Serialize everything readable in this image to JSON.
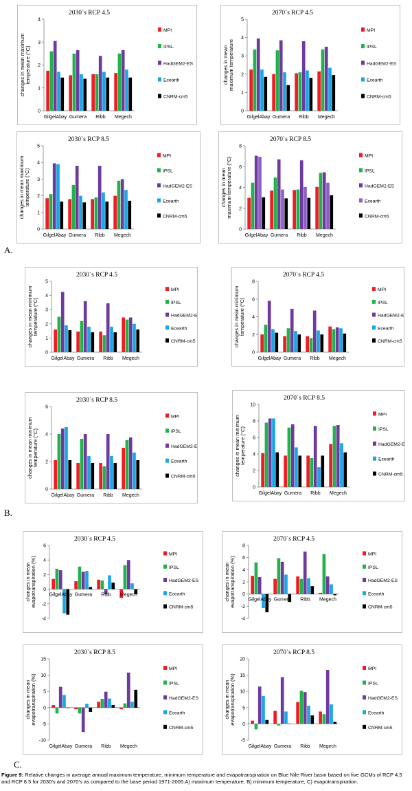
{
  "colors": {
    "MPI": "#ee1c25",
    "IPSL": "#22b24c",
    "HadGEM2-ES": "#6e3a9e",
    "Ecearth": "#1aa7e6",
    "CNRM-cm5": "#000000",
    "Ecearth_alt": "#8f5fc4"
  },
  "sections": [
    {
      "label": "A."
    },
    {
      "label": "B."
    },
    {
      "label": "C."
    }
  ],
  "caption": {
    "prefix": "Figure 9:",
    "text": " Relative changes in average annual maximum temperature, minimum temperature and evapotranspiration on Blue Nile River basin based on five GCMs of RCP 4.5 and RCP 8.5 for 2030’s and 2070’s as compared to the base period 1971-2005.A) maximum temperature, B) minimum temperature,  C) evapotranspiration."
  },
  "chart_data": [
    {
      "id": "a1",
      "type": "bar",
      "title": "2030`s RCP 4.5",
      "ylabel": [
        "changes in mean maximum",
        "temperature (°C)"
      ],
      "ylim": [
        0,
        4
      ],
      "yticks": [
        0,
        1,
        2,
        3,
        4
      ],
      "categories": [
        "GilgelAbay",
        "Gumera",
        "Ribb",
        "Megech"
      ],
      "series": [
        {
          "name": "MPI",
          "values": [
            1.75,
            1.55,
            1.6,
            1.65
          ]
        },
        {
          "name": "IPSL",
          "values": [
            2.6,
            2.5,
            1.6,
            2.5
          ]
        },
        {
          "name": "HadGEM2-ES",
          "values": [
            3.05,
            2.65,
            2.4,
            2.65
          ]
        },
        {
          "name": "Ecearth",
          "values": [
            1.7,
            1.6,
            1.7,
            1.8
          ]
        },
        {
          "name": "CNRM-cm5",
          "values": [
            1.45,
            1.4,
            1.45,
            1.45
          ]
        }
      ]
    },
    {
      "id": "a2",
      "type": "bar",
      "title": "2070`s RCP 4.5",
      "ylabel": [
        "changes in mean",
        "maximum temperature"
      ],
      "ylim": [
        0,
        5
      ],
      "yticks": [
        0,
        1,
        2,
        3,
        4,
        5
      ],
      "categories": [
        "GilgelAbay",
        "Gumera",
        "Ribb",
        "Megech"
      ],
      "series": [
        {
          "name": "MPI",
          "values": [
            2.25,
            2.0,
            2.05,
            2.15
          ]
        },
        {
          "name": "IPSL",
          "values": [
            3.35,
            3.3,
            2.1,
            3.35
          ]
        },
        {
          "name": "HadGEM2-ES",
          "values": [
            3.95,
            3.85,
            3.8,
            3.5
          ]
        },
        {
          "name": "Ecearth",
          "values": [
            2.25,
            2.1,
            2.2,
            2.35
          ]
        },
        {
          "name": "CNRM-cm5",
          "values": [
            1.85,
            1.4,
            1.8,
            1.95
          ]
        }
      ]
    },
    {
      "id": "a3",
      "type": "bar",
      "title": "2030`s RCP 8.5",
      "ylabel": [
        "changes in mean maximum",
        "temperature (°C)"
      ],
      "ylim": [
        0,
        5
      ],
      "yticks": [
        0,
        1,
        2,
        3,
        4,
        5
      ],
      "categories": [
        "GilgelAbay",
        "Gumera",
        "Ribb",
        "Megech"
      ],
      "series": [
        {
          "name": "MPI",
          "values": [
            1.85,
            1.8,
            1.8,
            2.0
          ]
        },
        {
          "name": "IPSL",
          "values": [
            2.1,
            2.65,
            1.9,
            2.9
          ]
        },
        {
          "name": "HadGEM2-ES",
          "values": [
            3.95,
            3.8,
            3.8,
            3.0
          ]
        },
        {
          "name": "Ecearth",
          "values": [
            3.9,
            2.0,
            2.2,
            2.35
          ]
        },
        {
          "name": "CNRM-cm5",
          "values": [
            1.65,
            1.6,
            1.65,
            1.7
          ]
        }
      ]
    },
    {
      "id": "a4",
      "type": "bar",
      "title": "2070`s RCP 8.5",
      "ylabel": [
        "changes in mean",
        "maximum temperature (°C)"
      ],
      "ylim": [
        0,
        8
      ],
      "yticks": [
        0,
        2,
        4,
        6,
        8
      ],
      "categories": [
        "GilgelAbay",
        "Gumera",
        "Ribb",
        "Megech"
      ],
      "series": [
        {
          "name": "MPI",
          "values": [
            3.0,
            3.7,
            3.75,
            4.05
          ]
        },
        {
          "name": "IPSL",
          "values": [
            4.45,
            4.95,
            3.8,
            5.4
          ]
        },
        {
          "name": "HadGEM2-ES",
          "values": [
            7.05,
            6.7,
            6.6,
            5.45
          ]
        },
        {
          "name": "Ecearth",
          "values": [
            6.95,
            3.8,
            4.05,
            4.45
          ],
          "color": "#8f5fc4"
        },
        {
          "name": "CNRM-cm5",
          "values": [
            3.05,
            2.95,
            3.0,
            3.25
          ]
        }
      ]
    },
    {
      "id": "b1",
      "type": "bar",
      "title": "2030`s RCP 4.5",
      "ylabel": [
        "changes in mean minimum",
        "temperature (°C)"
      ],
      "ylim": [
        0,
        5
      ],
      "yticks": [
        0,
        1,
        2,
        3,
        4,
        5
      ],
      "categories": [
        "GilgelAbay",
        "Gumera",
        "Ribb",
        "Megech"
      ],
      "series": [
        {
          "name": "MPI",
          "values": [
            1.6,
            1.45,
            1.45,
            2.45
          ]
        },
        {
          "name": "IPSL",
          "values": [
            2.5,
            2.2,
            1.2,
            2.3
          ]
        },
        {
          "name": "HadGEM2-ES",
          "values": [
            4.25,
            3.6,
            3.45,
            2.45
          ]
        },
        {
          "name": "Ecearth",
          "values": [
            1.9,
            1.8,
            1.8,
            2.0
          ]
        },
        {
          "name": "CNRM-cm5",
          "values": [
            1.55,
            1.4,
            1.4,
            1.6
          ]
        }
      ]
    },
    {
      "id": "b2",
      "type": "bar",
      "title": "2070`s RCP 4.5",
      "ylabel": [
        "changes in mean minimum",
        "temperature (°C)"
      ],
      "ylim": [
        0,
        8
      ],
      "yticks": [
        0,
        2,
        4,
        6,
        8
      ],
      "categories": [
        "GilgelAbay",
        "Gumera",
        "Ribb",
        "Megech"
      ],
      "series": [
        {
          "name": "MPI",
          "values": [
            2.0,
            1.8,
            1.8,
            2.9
          ]
        },
        {
          "name": "IPSL",
          "values": [
            3.1,
            2.7,
            1.6,
            2.6
          ]
        },
        {
          "name": "HadGEM2-ES",
          "values": [
            5.8,
            4.9,
            4.7,
            2.8
          ]
        },
        {
          "name": "Ecearth",
          "values": [
            2.6,
            2.4,
            2.45,
            2.7
          ]
        },
        {
          "name": "CNRM-cm5",
          "values": [
            2.2,
            2.0,
            2.0,
            2.1
          ]
        }
      ]
    },
    {
      "id": "b3",
      "type": "bar",
      "title": "2030`s RCP 8.5",
      "ylabel": [
        "changes in mean minimum",
        "temperature (°C)"
      ],
      "ylim": [
        0,
        6
      ],
      "yticks": [
        0,
        2,
        4,
        6
      ],
      "categories": [
        "GilgelAbay",
        "Gumera",
        "Ribb",
        "Megech"
      ],
      "series": [
        {
          "name": "MPI",
          "values": [
            2.1,
            1.9,
            1.9,
            3.0
          ]
        },
        {
          "name": "IPSL",
          "values": [
            4.0,
            3.65,
            1.65,
            3.55
          ]
        },
        {
          "name": "HadGEM2-ES",
          "values": [
            4.4,
            4.0,
            4.0,
            3.75
          ]
        },
        {
          "name": "Ecearth",
          "values": [
            4.5,
            2.4,
            2.4,
            2.65
          ]
        },
        {
          "name": "CNRM-cm5",
          "values": [
            2.1,
            1.9,
            1.9,
            2.1
          ]
        }
      ]
    },
    {
      "id": "b4",
      "type": "bar",
      "title": "2070`s RCP 8.5",
      "ylabel": [
        "changes in mean minimum",
        "temperature (°C)"
      ],
      "ylim": [
        0,
        10
      ],
      "yticks": [
        0,
        2,
        4,
        6,
        8,
        10
      ],
      "categories": [
        "GilgelAbay",
        "Gumera",
        "Ribb",
        "Megech"
      ],
      "series": [
        {
          "name": "MPI",
          "values": [
            4.1,
            3.8,
            3.8,
            5.2
          ]
        },
        {
          "name": "IPSL",
          "values": [
            7.8,
            7.2,
            3.5,
            7.4
          ]
        },
        {
          "name": "HadGEM2-ES",
          "values": [
            8.3,
            7.6,
            7.4,
            7.5
          ]
        },
        {
          "name": "Ecearth",
          "values": [
            8.3,
            4.8,
            2.4,
            5.3
          ]
        },
        {
          "name": "CNRM-cm5",
          "values": [
            4.2,
            3.8,
            3.8,
            4.2
          ]
        }
      ]
    },
    {
      "id": "c1",
      "type": "bar",
      "title": "2030`s RCP 4.5",
      "ylabel": [
        "changes in mean",
        "evapotranspiration (%)"
      ],
      "ylim": [
        -4,
        6
      ],
      "yticks": [
        -4,
        -2,
        0,
        2,
        4,
        6
      ],
      "inside_labels": true,
      "categories": [
        "GilgelAbay",
        "Gumera",
        "Ribb",
        "Megech"
      ],
      "series": [
        {
          "name": "MPI",
          "values": [
            1.4,
            1.1,
            1.3,
            -1.2
          ]
        },
        {
          "name": "IPSL",
          "values": [
            2.8,
            3.1,
            1.2,
            3.3
          ]
        },
        {
          "name": "HadGEM2-ES",
          "values": [
            2.6,
            2.4,
            -0.7,
            4.0
          ]
        },
        {
          "name": "Ecearth",
          "values": [
            -3.3,
            2.5,
            1.9,
            0.8
          ]
        },
        {
          "name": "CNRM-cm5",
          "values": [
            -3.5,
            0.3,
            0.9,
            -0.7
          ]
        }
      ]
    },
    {
      "id": "c2",
      "type": "bar",
      "title": "2070`s RCP 4.5",
      "ylabel": [
        "changes in mean",
        "evapotranspiration (%)"
      ],
      "ylim": [
        -4,
        8
      ],
      "yticks": [
        -4,
        -2,
        0,
        2,
        4,
        6,
        8
      ],
      "inside_labels": true,
      "categories": [
        "GilgelAbay",
        "Gumera",
        "Ribb",
        "Megech"
      ],
      "series": [
        {
          "name": "MPI",
          "values": [
            3.0,
            2.5,
            2.9,
            0.2
          ]
        },
        {
          "name": "IPSL",
          "values": [
            5.2,
            5.9,
            2.5,
            6.6
          ]
        },
        {
          "name": "HadGEM2-ES",
          "values": [
            2.8,
            5.3,
            7.0,
            2.9
          ]
        },
        {
          "name": "Ecearth",
          "values": [
            -2.3,
            3.2,
            2.6,
            1.6
          ]
        },
        {
          "name": "CNRM-cm5",
          "values": [
            -3.0,
            -1.3,
            1.3,
            -0.2
          ]
        }
      ]
    },
    {
      "id": "c3",
      "type": "bar",
      "title": "2030`s RCP 8.5",
      "ylabel": [
        "changes in mean",
        "evapotranspiration (%)"
      ],
      "ylim": [
        -10,
        15
      ],
      "yticks": [
        -10,
        -5,
        0,
        5,
        10,
        15
      ],
      "categories": [
        "GilgelAbay",
        "Gumera",
        "Ribb",
        "Megech"
      ],
      "series": [
        {
          "name": "MPI",
          "values": [
            0.8,
            -0.5,
            1.8,
            -0.5
          ]
        },
        {
          "name": "IPSL",
          "values": [
            -1.8,
            -1.8,
            2.7,
            1.3
          ]
        },
        {
          "name": "HadGEM2-ES",
          "values": [
            6.4,
            -7.5,
            4.9,
            10.8
          ]
        },
        {
          "name": "Ecearth",
          "values": [
            3.9,
            1.2,
            2.8,
            1.8
          ]
        },
        {
          "name": "CNRM-cm5",
          "values": [
            0.0,
            -1.3,
            0.8,
            5.5
          ]
        }
      ]
    },
    {
      "id": "c4",
      "type": "bar",
      "title": "2070`s RCP 8.5",
      "ylabel": [
        "changes in mean",
        "evapotranspiration (%)"
      ],
      "ylim": [
        -5,
        20
      ],
      "yticks": [
        -5,
        0,
        5,
        10,
        15,
        20
      ],
      "categories": [
        "GilgelAbay",
        "Gumera",
        "Ribb",
        "Megech"
      ],
      "series": [
        {
          "name": "MPI",
          "values": [
            1.0,
            4.0,
            6.7,
            3.8
          ]
        },
        {
          "name": "IPSL",
          "values": [
            -1.7,
            -0.5,
            10.2,
            3.0
          ]
        },
        {
          "name": "HadGEM2-ES",
          "values": [
            11.5,
            14.4,
            9.8,
            16.6
          ]
        },
        {
          "name": "Ecearth",
          "values": [
            8.6,
            3.8,
            5.6,
            6.0
          ]
        },
        {
          "name": "CNRM-cm5",
          "values": [
            1.2,
            0.1,
            2.6,
            0.6
          ]
        }
      ]
    }
  ]
}
